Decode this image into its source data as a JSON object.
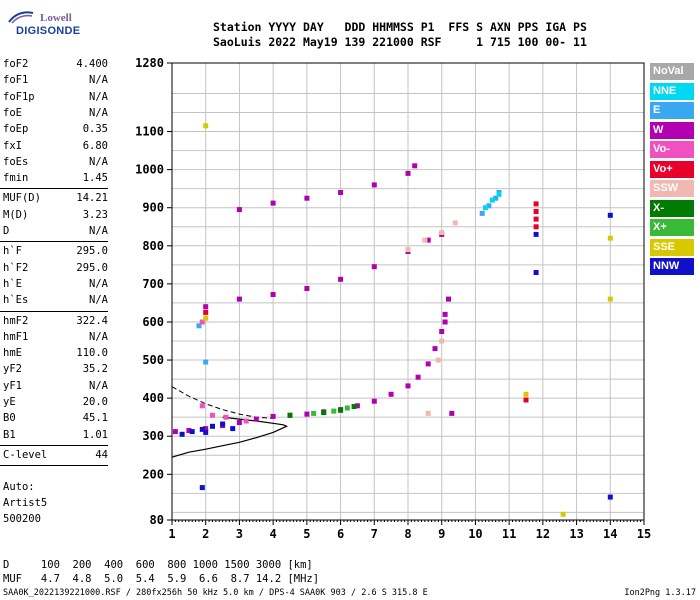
{
  "logo": {
    "top": "Lowell",
    "bottom": "DIGISONDE"
  },
  "header": {
    "line1": "Station YYYY DAY   DDD HHMMSS P1  FFS S AXN PPS IGA PS",
    "line2": "SaoLuis 2022 May19 139 221000 RSF     1 715 100 00- 11"
  },
  "params": [
    {
      "k": "foF2",
      "v": "4.400"
    },
    {
      "k": "foF1",
      "v": "N/A"
    },
    {
      "k": "foF1p",
      "v": "N/A"
    },
    {
      "k": "foE",
      "v": "N/A"
    },
    {
      "k": "foEp",
      "v": "0.35"
    },
    {
      "k": "fxI",
      "v": "6.80"
    },
    {
      "k": "foEs",
      "v": "N/A"
    },
    {
      "k": "fmin",
      "v": "1.45"
    },
    {
      "k": "MUF(D)",
      "v": "14.21"
    },
    {
      "k": "M(D)",
      "v": "3.23"
    },
    {
      "k": "D",
      "v": "N/A"
    },
    {
      "k": "h`F",
      "v": "295.0"
    },
    {
      "k": "h`F2",
      "v": "295.0"
    },
    {
      "k": "h`E",
      "v": "N/A"
    },
    {
      "k": "h`Es",
      "v": "N/A"
    },
    {
      "k": "hmF2",
      "v": "322.4"
    },
    {
      "k": "hmF1",
      "v": "N/A"
    },
    {
      "k": "hmE",
      "v": "110.0"
    },
    {
      "k": "yF2",
      "v": "35.2"
    },
    {
      "k": "yF1",
      "v": "N/A"
    },
    {
      "k": "yE",
      "v": "20.0"
    },
    {
      "k": "B0",
      "v": "45.1"
    },
    {
      "k": "B1",
      "v": "1.01"
    },
    {
      "k": "C-level",
      "v": "44"
    }
  ],
  "auto": [
    "Auto:",
    "Artist5",
    "500200"
  ],
  "legend": [
    {
      "label": "NoVal",
      "color": "#a8a8a8"
    },
    {
      "label": "NNE",
      "color": "#00d8f0"
    },
    {
      "label": "E",
      "color": "#3aa8f0"
    },
    {
      "label": "W",
      "color": "#b000b0"
    },
    {
      "label": "Vo-",
      "color": "#f050c0"
    },
    {
      "label": "Vo+",
      "color": "#e8002a"
    },
    {
      "label": "SSW",
      "color": "#f0b8b0"
    },
    {
      "label": "X-",
      "color": "#007a00"
    },
    {
      "label": "X+",
      "color": "#3ab838"
    },
    {
      "label": "SSE",
      "color": "#d8c800"
    },
    {
      "label": "NNW",
      "color": "#1010c8"
    }
  ],
  "footer": {
    "line1": "D     100  200  400  600  800 1000 1500 3000 [km]",
    "line2": "MUF   4.7  4.8  5.0  5.4  5.9  6.6  8.7 14.2 [MHz]"
  },
  "bottom": {
    "left": "SAA0K_2022139221000.RSF / 280fx256h 50 kHz 5.0 km / DPS-4 SAA0K 903 / 2.6 S 315.8 E",
    "right": "Ion2Png 1.3.17"
  },
  "chart_data": {
    "type": "scatter",
    "xlim": [
      1,
      15
    ],
    "ylim": [
      80,
      1280
    ],
    "x_ticks": [
      1,
      2,
      3,
      4,
      5,
      6,
      7,
      8,
      9,
      10,
      11,
      12,
      13,
      14,
      15
    ],
    "y_ticks": [
      80,
      200,
      300,
      400,
      500,
      600,
      700,
      800,
      900,
      1000,
      1100,
      1280
    ],
    "x_unit": "MHz",
    "y_unit": "km",
    "grid": true,
    "series": [
      {
        "name": "W",
        "points": [
          [
            1.1,
            312
          ],
          [
            1.5,
            315
          ],
          [
            2.0,
            320
          ],
          [
            2.5,
            328
          ],
          [
            3.0,
            336
          ],
          [
            3.5,
            345
          ],
          [
            4.0,
            352
          ],
          [
            4.5,
            355
          ],
          [
            5.0,
            358
          ],
          [
            5.5,
            364
          ],
          [
            6.0,
            370
          ],
          [
            6.5,
            380
          ],
          [
            7.0,
            392
          ],
          [
            7.5,
            410
          ],
          [
            8.0,
            432
          ],
          [
            8.3,
            455
          ],
          [
            8.6,
            490
          ],
          [
            8.8,
            530
          ],
          [
            9.0,
            575
          ],
          [
            9.1,
            620
          ],
          [
            9.2,
            660
          ],
          [
            2.0,
            640
          ],
          [
            3.0,
            660
          ],
          [
            4.0,
            672
          ],
          [
            5.0,
            688
          ],
          [
            6.0,
            712
          ],
          [
            7.0,
            745
          ],
          [
            8.0,
            785
          ],
          [
            8.6,
            815
          ],
          [
            9.0,
            830
          ],
          [
            3.0,
            895
          ],
          [
            4.0,
            912
          ],
          [
            5.0,
            925
          ],
          [
            6.0,
            940
          ],
          [
            7.0,
            960
          ],
          [
            8.0,
            990
          ],
          [
            8.2,
            1010
          ],
          [
            9.3,
            360
          ],
          [
            9.1,
            600
          ]
        ]
      },
      {
        "name": "SSW",
        "points": [
          [
            8.0,
            790
          ],
          [
            8.5,
            815
          ],
          [
            9.0,
            835
          ],
          [
            9.4,
            860
          ],
          [
            8.6,
            360
          ],
          [
            8.9,
            500
          ],
          [
            9.0,
            550
          ]
        ]
      },
      {
        "name": "E",
        "points": [
          [
            10.2,
            885
          ],
          [
            10.4,
            905
          ],
          [
            10.6,
            925
          ],
          [
            10.7,
            940
          ],
          [
            1.8,
            590
          ],
          [
            2.0,
            495
          ]
        ]
      },
      {
        "name": "NNE",
        "points": [
          [
            10.3,
            900
          ],
          [
            10.5,
            920
          ],
          [
            10.7,
            935
          ]
        ]
      },
      {
        "name": "NNW",
        "points": [
          [
            1.3,
            305
          ],
          [
            1.6,
            312
          ],
          [
            1.9,
            318
          ],
          [
            2.2,
            326
          ],
          [
            2.5,
            332
          ],
          [
            2.8,
            320
          ],
          [
            1.9,
            165
          ],
          [
            2.0,
            310
          ],
          [
            11.8,
            830
          ],
          [
            11.8,
            730
          ],
          [
            14.0,
            880
          ],
          [
            14.0,
            140
          ]
        ]
      },
      {
        "name": "X-",
        "points": [
          [
            5.5,
            362
          ],
          [
            6.0,
            368
          ],
          [
            6.4,
            378
          ],
          [
            4.5,
            355
          ]
        ]
      },
      {
        "name": "X+",
        "points": [
          [
            5.2,
            360
          ],
          [
            5.8,
            366
          ],
          [
            6.2,
            374
          ]
        ]
      },
      {
        "name": "Vo+",
        "points": [
          [
            11.8,
            910
          ],
          [
            11.8,
            890
          ],
          [
            11.8,
            870
          ],
          [
            11.8,
            850
          ],
          [
            11.5,
            395
          ],
          [
            2.0,
            625
          ]
        ]
      },
      {
        "name": "Vo-",
        "points": [
          [
            1.9,
            380
          ],
          [
            2.2,
            355
          ],
          [
            2.6,
            350
          ],
          [
            3.2,
            340
          ],
          [
            1.9,
            600
          ]
        ]
      },
      {
        "name": "SSE",
        "points": [
          [
            2.0,
            1115
          ],
          [
            11.5,
            410
          ],
          [
            14.0,
            820
          ],
          [
            14.0,
            660
          ],
          [
            12.6,
            95
          ],
          [
            2.0,
            610
          ]
        ]
      }
    ],
    "profile_curve": [
      [
        1.0,
        245
      ],
      [
        1.5,
        258
      ],
      [
        2.0,
        266
      ],
      [
        2.5,
        275
      ],
      [
        3.0,
        284
      ],
      [
        3.5,
        296
      ],
      [
        4.0,
        310
      ],
      [
        4.3,
        322
      ],
      [
        4.4,
        326
      ],
      [
        4.3,
        330
      ],
      [
        4.0,
        334
      ],
      [
        3.5,
        340
      ],
      [
        3.0,
        345
      ],
      [
        2.5,
        350
      ]
    ],
    "dashed_curve": [
      [
        1.0,
        430
      ],
      [
        1.5,
        405
      ],
      [
        2.0,
        385
      ],
      [
        2.5,
        370
      ],
      [
        3.0,
        358
      ],
      [
        3.5,
        350
      ],
      [
        4.0,
        347
      ]
    ]
  }
}
